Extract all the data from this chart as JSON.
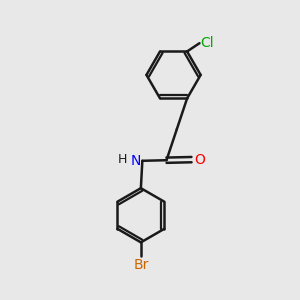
{
  "bg_color": "#e8e8e8",
  "bond_color": "#1a1a1a",
  "bond_width": 1.8,
  "cl_color": "#00aa00",
  "br_color": "#cc6600",
  "n_color": "#0000ff",
  "o_color": "#ff0000",
  "font_size": 10,
  "small_font": 9,
  "fig_size": [
    3.0,
    3.0
  ],
  "dpi": 100,
  "xlim": [
    0,
    10
  ],
  "ylim": [
    0,
    10
  ]
}
